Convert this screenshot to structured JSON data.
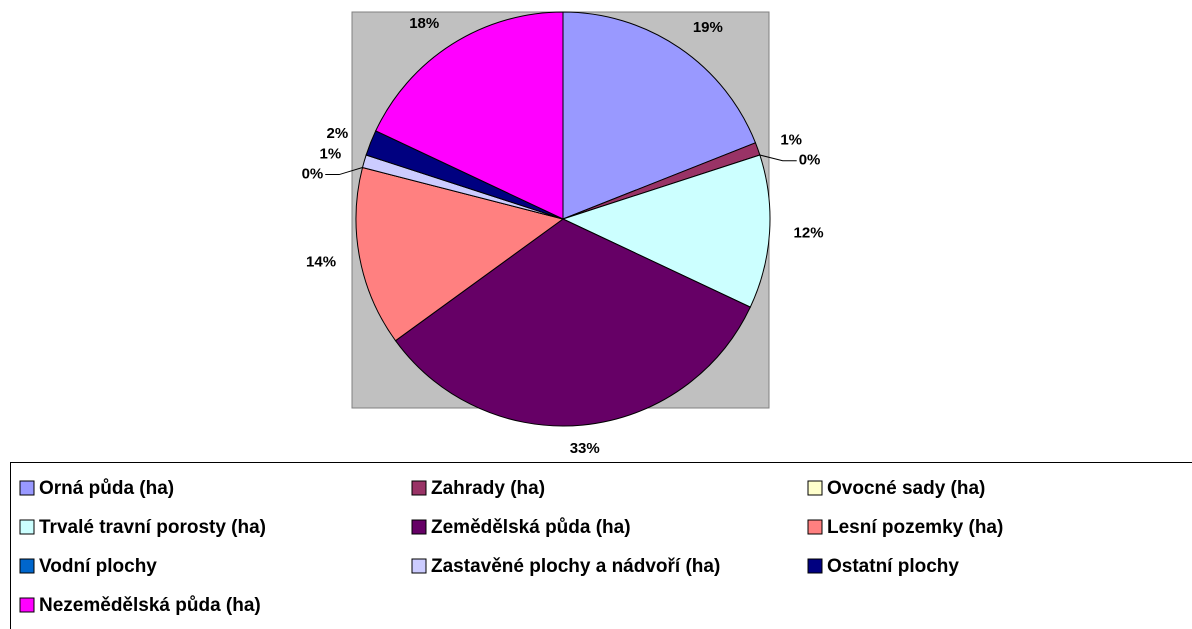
{
  "chart_data": {
    "type": "pie",
    "categories": [
      "Orná půda (ha)",
      "Zahrady (ha)",
      "Ovocné sady  (ha)",
      "Trvalé travní porosty (ha)",
      "Zemědělská půda  (ha)",
      "Lesní pozemky (ha)",
      "Vodní plochy",
      "Zastavěné plochy a nádvoří  (ha)",
      "Ostatní plochy",
      "Nezemědělská půda  (ha)"
    ],
    "values": [
      19,
      1,
      0,
      12,
      33,
      14,
      0,
      1,
      2,
      18
    ],
    "value_labels": [
      "19%",
      "1%",
      "0%",
      "12%",
      "33%",
      "14%",
      "0%",
      "1%",
      "2%",
      "18%"
    ],
    "colors": [
      "#9999ff",
      "#993366",
      "#ffffcc",
      "#ccffff",
      "#660066",
      "#ff8080",
      "#0066cc",
      "#ccccff",
      "#000080",
      "#ff00ff"
    ],
    "legend": "bottom"
  }
}
